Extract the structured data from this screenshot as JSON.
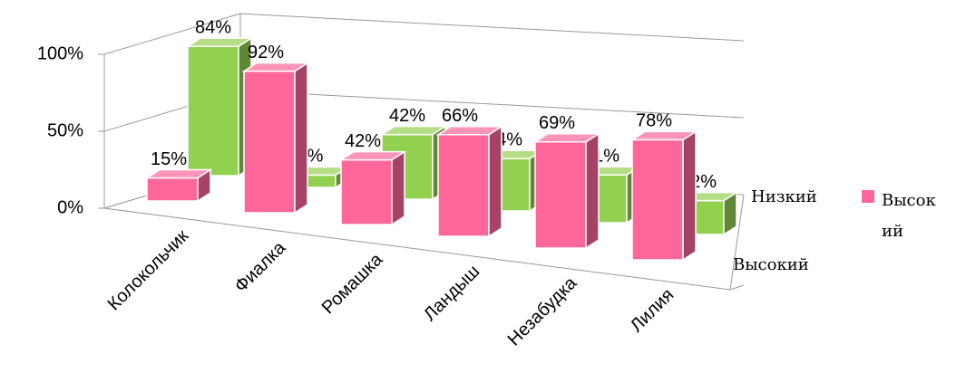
{
  "chart_data": {
    "type": "bar3d",
    "categories": [
      "Колокольчик",
      "Фиалка",
      "Ромашка",
      "Ландыш",
      "Незабудка",
      "Лилия"
    ],
    "series": [
      {
        "name": "Высокий",
        "color": "#ff6699",
        "values": [
          15,
          92,
          42,
          66,
          69,
          78
        ],
        "value_labels": [
          "15%",
          "92%",
          "42%",
          "66%",
          "69%",
          "78%"
        ]
      },
      {
        "name": "Низкий",
        "color": "#92d050",
        "values": [
          84,
          8,
          42,
          34,
          31,
          22
        ],
        "value_labels": [
          "84%",
          "8%",
          "42%",
          "34%",
          "31%",
          "22%"
        ]
      }
    ],
    "ylim": [
      0,
      100
    ],
    "yticks": [
      {
        "value": 0,
        "label": "0%"
      },
      {
        "value": 50,
        "label": "50%"
      },
      {
        "value": 100,
        "label": "100%"
      }
    ],
    "grid": true,
    "legend": {
      "position": "right",
      "series": [
        0
      ]
    }
  }
}
